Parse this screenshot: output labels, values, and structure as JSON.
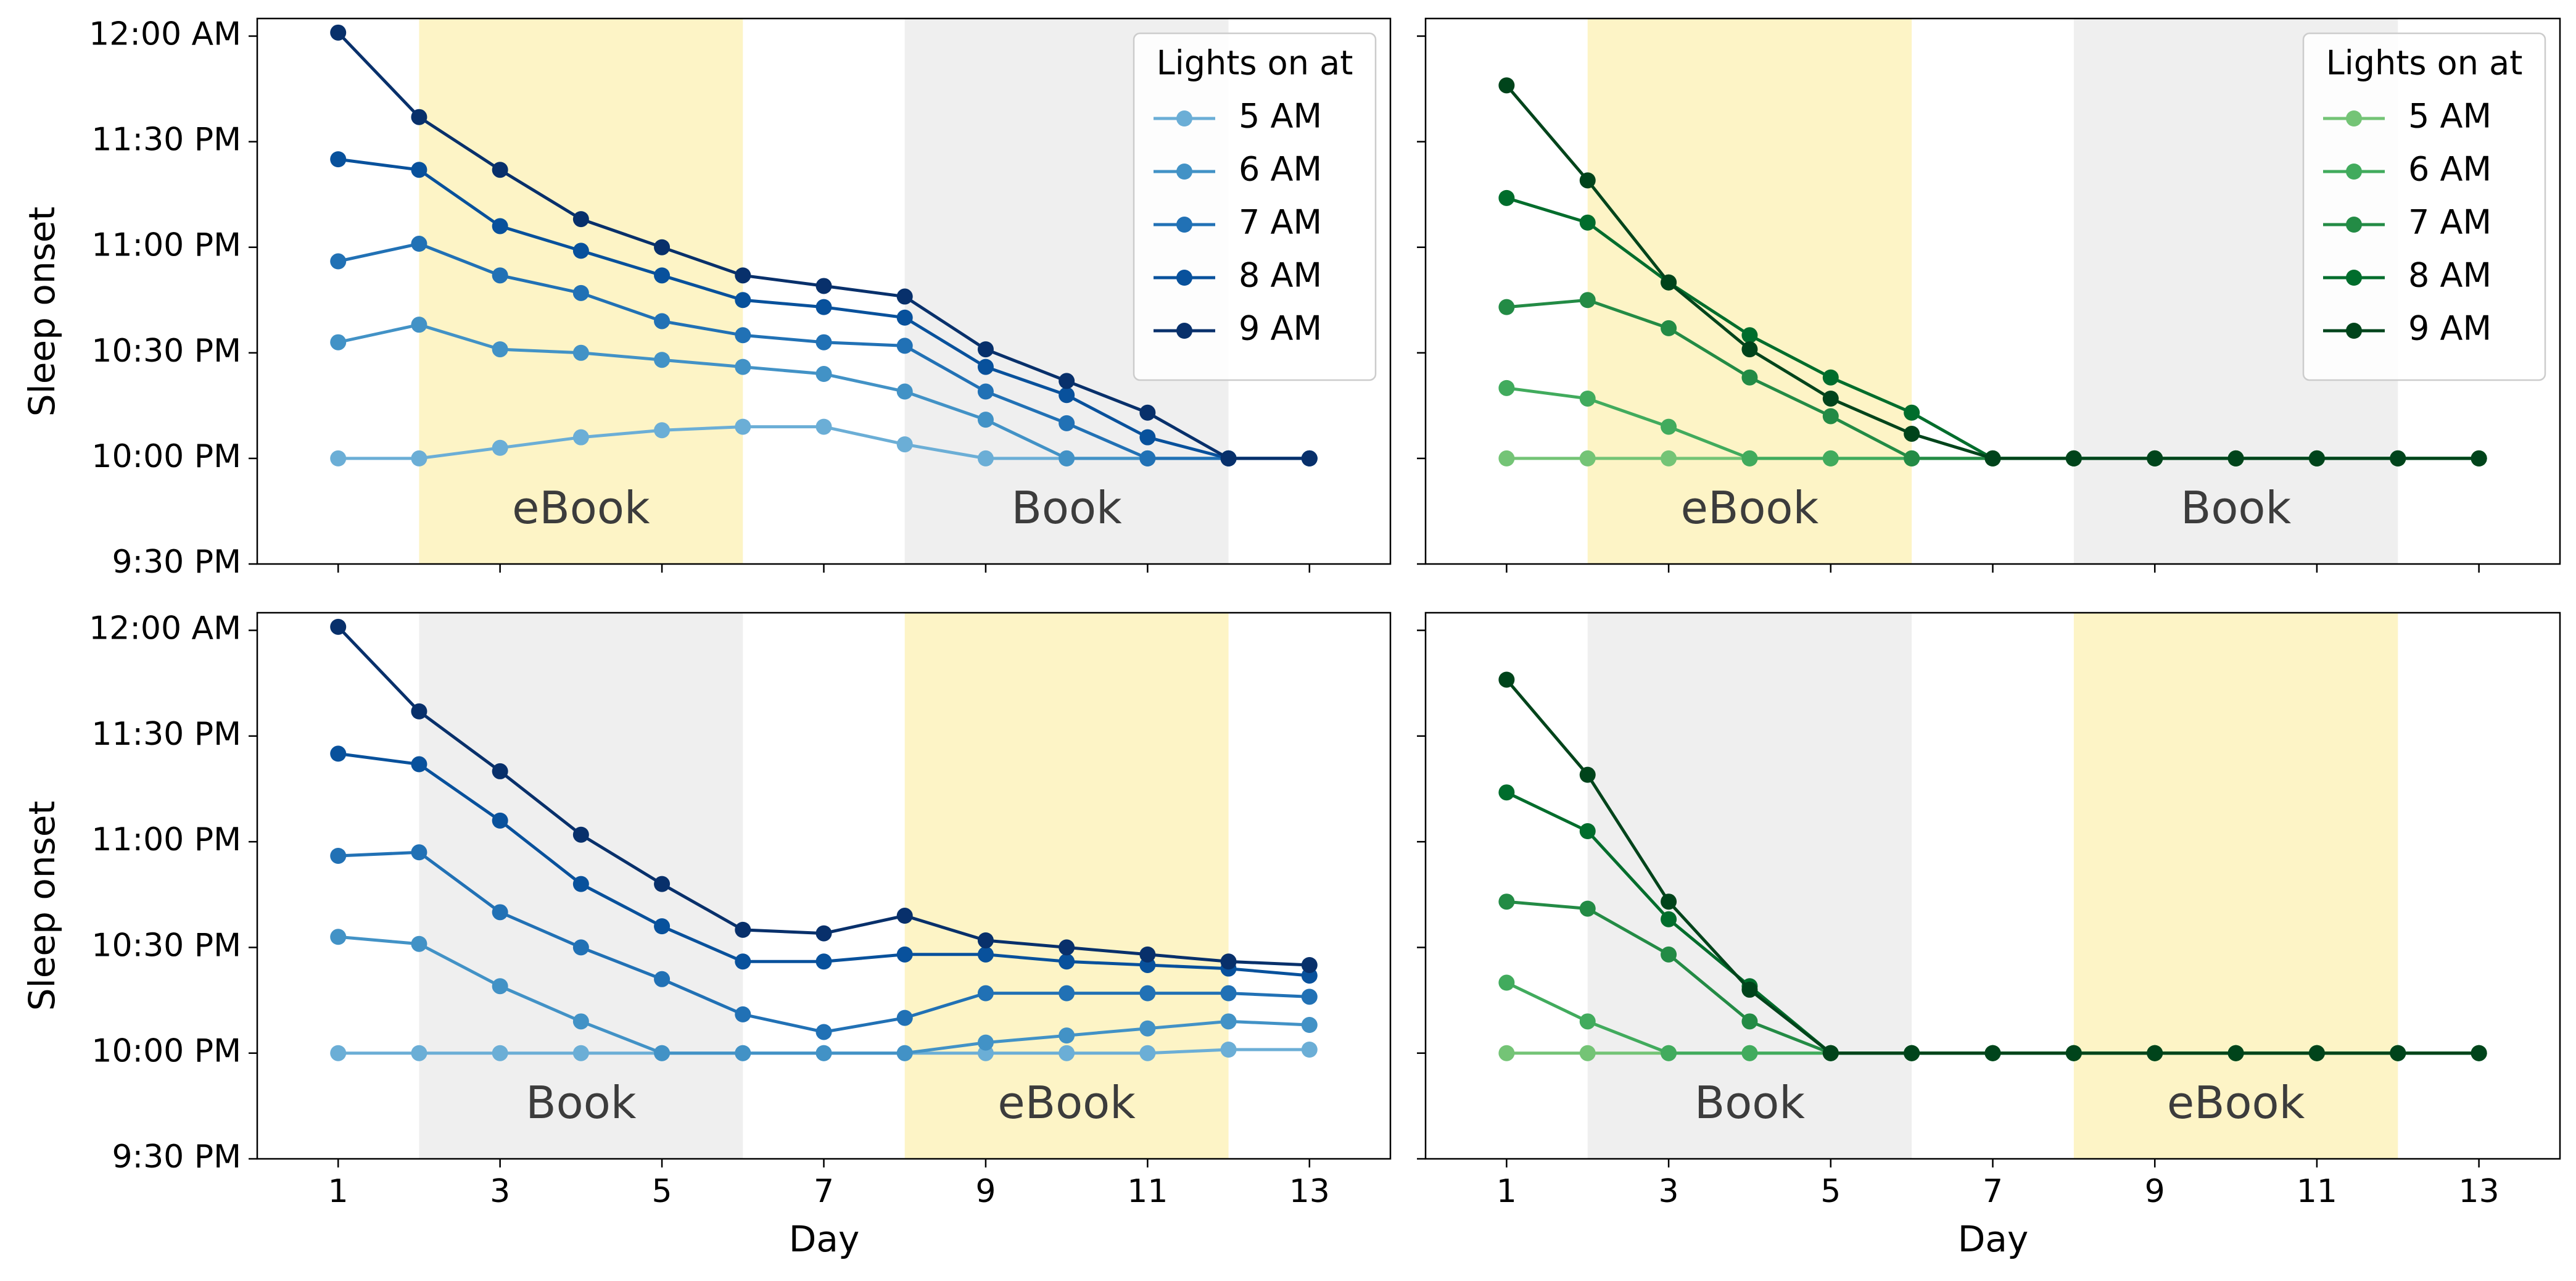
{
  "figure": {
    "x_axis_label": "Day",
    "y_axis_label": "Sleep onset"
  },
  "chart_data": [
    {
      "type": "line",
      "panel": "top-left",
      "xlabel": "",
      "ylabel": "Sleep onset",
      "x": [
        1,
        2,
        3,
        4,
        5,
        6,
        7,
        8,
        9,
        10,
        11,
        12,
        13
      ],
      "xticks": [
        1,
        3,
        5,
        7,
        9,
        11,
        13
      ],
      "xlim": [
        0,
        14
      ],
      "ylim_minutes_after_930pm": [
        0,
        155
      ],
      "yticks": [
        "9:30 PM",
        "10:00 PM",
        "10:30 PM",
        "11:00 PM",
        "11:30 PM",
        "12:00 AM"
      ],
      "shaded_regions": [
        {
          "label": "eBook",
          "start_day": 2,
          "end_day": 6,
          "color": "#fdf4c6"
        },
        {
          "label": "Book",
          "start_day": 8,
          "end_day": 12,
          "color": "#efefef"
        }
      ],
      "legend_title": "Lights on at",
      "legend_position": "top-right",
      "series": [
        {
          "name": "5 AM",
          "color": "#6baed6",
          "values": [
            "10:00 PM",
            "10:00 PM",
            "10:03 PM",
            "10:06 PM",
            "10:08 PM",
            "10:09 PM",
            "10:09 PM",
            "10:04 PM",
            "10:00 PM",
            "10:00 PM",
            "10:00 PM",
            "10:00 PM",
            "10:00 PM"
          ]
        },
        {
          "name": "6 AM",
          "color": "#4292c6",
          "values": [
            "10:33 PM",
            "10:38 PM",
            "10:31 PM",
            "10:30 PM",
            "10:28 PM",
            "10:26 PM",
            "10:24 PM",
            "10:19 PM",
            "10:11 PM",
            "10:00 PM",
            "10:00 PM",
            "10:00 PM",
            "10:00 PM"
          ]
        },
        {
          "name": "7 AM",
          "color": "#2171b5",
          "values": [
            "10:56 PM",
            "11:01 PM",
            "10:52 PM",
            "10:47 PM",
            "10:39 PM",
            "10:35 PM",
            "10:33 PM",
            "10:32 PM",
            "10:19 PM",
            "10:10 PM",
            "10:00 PM",
            "10:00 PM",
            "10:00 PM"
          ]
        },
        {
          "name": "8 AM",
          "color": "#08519c",
          "values": [
            "11:25 PM",
            "11:22 PM",
            "11:06 PM",
            "10:59 PM",
            "10:52 PM",
            "10:45 PM",
            "10:43 PM",
            "10:40 PM",
            "10:26 PM",
            "10:18 PM",
            "10:06 PM",
            "10:00 PM",
            "10:00 PM"
          ]
        },
        {
          "name": "9 AM",
          "color": "#08306b",
          "values": [
            "12:01 AM",
            "11:37 PM",
            "11:22 PM",
            "11:08 PM",
            "11:00 PM",
            "10:52 PM",
            "10:49 PM",
            "10:46 PM",
            "10:31 PM",
            "10:22 PM",
            "10:13 PM",
            "10:00 PM",
            "10:00 PM"
          ]
        }
      ]
    },
    {
      "type": "line",
      "panel": "top-right",
      "xlabel": "",
      "ylabel": "",
      "x": [
        1,
        2,
        3,
        4,
        5,
        6,
        7,
        8,
        9,
        10,
        11,
        12,
        13
      ],
      "xticks": [
        1,
        3,
        5,
        7,
        9,
        11,
        13
      ],
      "xlim": [
        0,
        14
      ],
      "ylim_minutes_after_930pm": [
        0,
        155
      ],
      "shaded_regions": [
        {
          "label": "eBook",
          "start_day": 2,
          "end_day": 6,
          "color": "#fdf4c6"
        },
        {
          "label": "Book",
          "start_day": 8,
          "end_day": 12,
          "color": "#efefef"
        }
      ],
      "legend_title": "Lights on at",
      "legend_position": "top-right",
      "series": [
        {
          "name": "5 AM",
          "color": "#74c476",
          "values": [
            "10:00 PM",
            "10:00 PM",
            "10:00 PM",
            "10:00 PM",
            "10:00 PM",
            "10:00 PM",
            "10:00 PM",
            "10:00 PM",
            "10:00 PM",
            "10:00 PM",
            "10:00 PM",
            "10:00 PM",
            "10:00 PM"
          ]
        },
        {
          "name": "6 AM",
          "color": "#41ab5d",
          "values": [
            "10:20 PM",
            "10:17 PM",
            "10:09 PM",
            "10:00 PM",
            "10:00 PM",
            "10:00 PM",
            "10:00 PM",
            "10:00 PM",
            "10:00 PM",
            "10:00 PM",
            "10:00 PM",
            "10:00 PM",
            "10:00 PM"
          ]
        },
        {
          "name": "7 AM",
          "color": "#238b45",
          "values": [
            "10:43 PM",
            "10:45 PM",
            "10:37 PM",
            "10:23 PM",
            "10:12 PM",
            "10:00 PM",
            "10:00 PM",
            "10:00 PM",
            "10:00 PM",
            "10:00 PM",
            "10:00 PM",
            "10:00 PM",
            "10:00 PM"
          ]
        },
        {
          "name": "8 AM",
          "color": "#006d2c",
          "values": [
            "11:14 PM",
            "11:07 PM",
            "10:50 PM",
            "10:35 PM",
            "10:23 PM",
            "10:13 PM",
            "10:00 PM",
            "10:00 PM",
            "10:00 PM",
            "10:00 PM",
            "10:00 PM",
            "10:00 PM",
            "10:00 PM"
          ]
        },
        {
          "name": "9 AM",
          "color": "#00441b",
          "values": [
            "11:46 PM",
            "11:19 PM",
            "10:50 PM",
            "10:31 PM",
            "10:17 PM",
            "10:07 PM",
            "10:00 PM",
            "10:00 PM",
            "10:00 PM",
            "10:00 PM",
            "10:00 PM",
            "10:00 PM",
            "10:00 PM"
          ]
        }
      ]
    },
    {
      "type": "line",
      "panel": "bottom-left",
      "xlabel": "Day",
      "ylabel": "Sleep onset",
      "x": [
        1,
        2,
        3,
        4,
        5,
        6,
        7,
        8,
        9,
        10,
        11,
        12,
        13
      ],
      "xticks": [
        1,
        3,
        5,
        7,
        9,
        11,
        13
      ],
      "xlim": [
        0,
        14
      ],
      "ylim_minutes_after_930pm": [
        0,
        155
      ],
      "yticks": [
        "9:30 PM",
        "10:00 PM",
        "10:30 PM",
        "11:00 PM",
        "11:30 PM",
        "12:00 AM"
      ],
      "shaded_regions": [
        {
          "label": "Book",
          "start_day": 2,
          "end_day": 6,
          "color": "#efefef"
        },
        {
          "label": "eBook",
          "start_day": 8,
          "end_day": 12,
          "color": "#fdf4c6"
        }
      ],
      "series": [
        {
          "name": "5 AM",
          "color": "#6baed6",
          "values": [
            "10:00 PM",
            "10:00 PM",
            "10:00 PM",
            "10:00 PM",
            "10:00 PM",
            "10:00 PM",
            "10:00 PM",
            "10:00 PM",
            "10:00 PM",
            "10:00 PM",
            "10:00 PM",
            "10:01 PM",
            "10:01 PM"
          ]
        },
        {
          "name": "6 AM",
          "color": "#4292c6",
          "values": [
            "10:33 PM",
            "10:31 PM",
            "10:19 PM",
            "10:09 PM",
            "10:00 PM",
            "10:00 PM",
            "10:00 PM",
            "10:00 PM",
            "10:03 PM",
            "10:05 PM",
            "10:07 PM",
            "10:09 PM",
            "10:08 PM"
          ]
        },
        {
          "name": "7 AM",
          "color": "#2171b5",
          "values": [
            "10:56 PM",
            "10:57 PM",
            "10:40 PM",
            "10:30 PM",
            "10:21 PM",
            "10:11 PM",
            "10:06 PM",
            "10:10 PM",
            "10:17 PM",
            "10:17 PM",
            "10:17 PM",
            "10:17 PM",
            "10:16 PM"
          ]
        },
        {
          "name": "8 AM",
          "color": "#08519c",
          "values": [
            "11:25 PM",
            "11:22 PM",
            "11:06 PM",
            "10:48 PM",
            "10:36 PM",
            "10:26 PM",
            "10:26 PM",
            "10:28 PM",
            "10:28 PM",
            "10:26 PM",
            "10:25 PM",
            "10:24 PM",
            "10:22 PM"
          ]
        },
        {
          "name": "9 AM",
          "color": "#08306b",
          "values": [
            "12:01 AM",
            "11:37 PM",
            "11:20 PM",
            "11:02 PM",
            "10:48 PM",
            "10:35 PM",
            "10:34 PM",
            "10:39 PM",
            "10:32 PM",
            "10:30 PM",
            "10:28 PM",
            "10:26 PM",
            "10:25 PM"
          ]
        }
      ]
    },
    {
      "type": "line",
      "panel": "bottom-right",
      "xlabel": "Day",
      "ylabel": "",
      "x": [
        1,
        2,
        3,
        4,
        5,
        6,
        7,
        8,
        9,
        10,
        11,
        12,
        13
      ],
      "xticks": [
        1,
        3,
        5,
        7,
        9,
        11,
        13
      ],
      "xlim": [
        0,
        14
      ],
      "ylim_minutes_after_930pm": [
        0,
        155
      ],
      "shaded_regions": [
        {
          "label": "Book",
          "start_day": 2,
          "end_day": 6,
          "color": "#efefef"
        },
        {
          "label": "eBook",
          "start_day": 8,
          "end_day": 12,
          "color": "#fdf4c6"
        }
      ],
      "series": [
        {
          "name": "5 AM",
          "color": "#74c476",
          "values": [
            "10:00 PM",
            "10:00 PM",
            "10:00 PM",
            "10:00 PM",
            "10:00 PM",
            "10:00 PM",
            "10:00 PM",
            "10:00 PM",
            "10:00 PM",
            "10:00 PM",
            "10:00 PM",
            "10:00 PM",
            "10:00 PM"
          ]
        },
        {
          "name": "6 AM",
          "color": "#41ab5d",
          "values": [
            "10:20 PM",
            "10:09 PM",
            "10:00 PM",
            "10:00 PM",
            "10:00 PM",
            "10:00 PM",
            "10:00 PM",
            "10:00 PM",
            "10:00 PM",
            "10:00 PM",
            "10:00 PM",
            "10:00 PM",
            "10:00 PM"
          ]
        },
        {
          "name": "7 AM",
          "color": "#238b45",
          "values": [
            "10:43 PM",
            "10:41 PM",
            "10:28 PM",
            "10:09 PM",
            "10:00 PM",
            "10:00 PM",
            "10:00 PM",
            "10:00 PM",
            "10:00 PM",
            "10:00 PM",
            "10:00 PM",
            "10:00 PM",
            "10:00 PM"
          ]
        },
        {
          "name": "8 AM",
          "color": "#006d2c",
          "values": [
            "11:14 PM",
            "11:03 PM",
            "10:38 PM",
            "10:19 PM",
            "10:00 PM",
            "10:00 PM",
            "10:00 PM",
            "10:00 PM",
            "10:00 PM",
            "10:00 PM",
            "10:00 PM",
            "10:00 PM",
            "10:00 PM"
          ]
        },
        {
          "name": "9 AM",
          "color": "#00441b",
          "values": [
            "11:46 PM",
            "11:19 PM",
            "10:43 PM",
            "10:18 PM",
            "10:00 PM",
            "10:00 PM",
            "10:00 PM",
            "10:00 PM",
            "10:00 PM",
            "10:00 PM",
            "10:00 PM",
            "10:00 PM",
            "10:00 PM"
          ]
        }
      ]
    }
  ]
}
